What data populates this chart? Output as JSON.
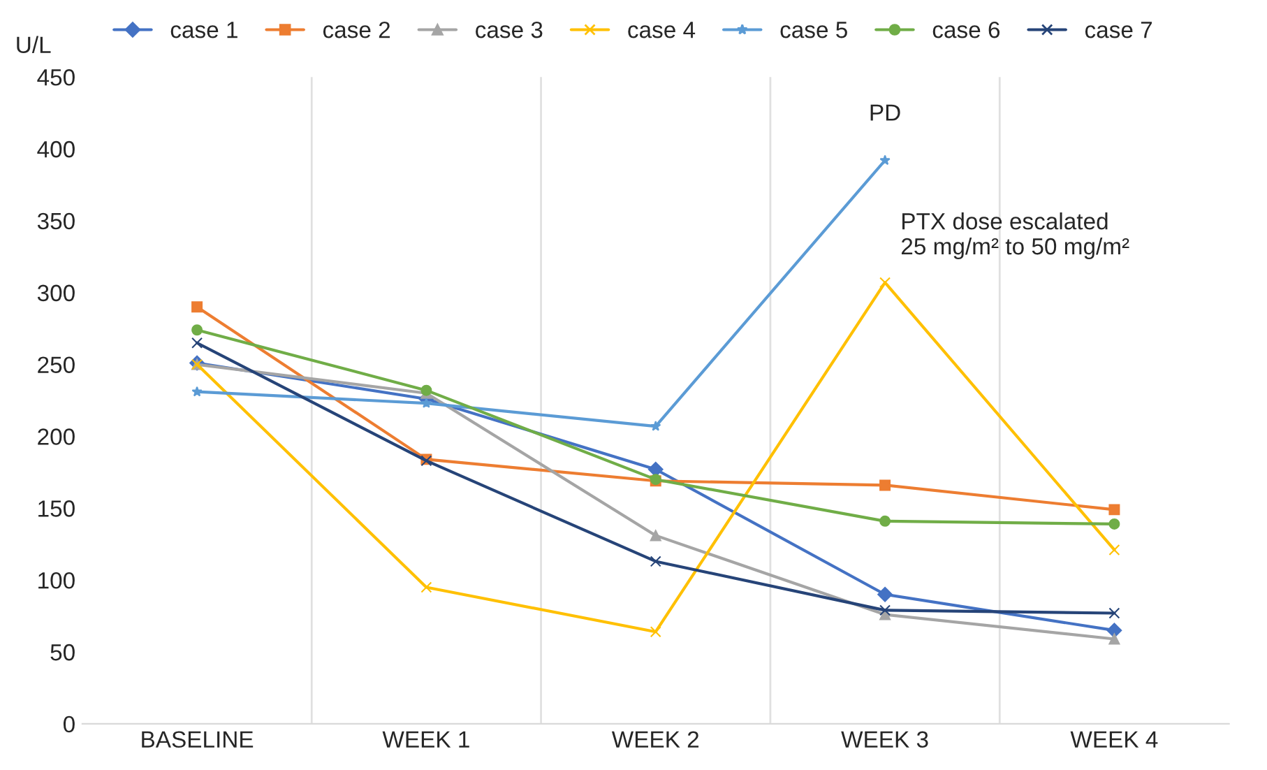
{
  "chart_data": {
    "type": "line",
    "ylabel": "U/L",
    "categories": [
      "BASELINE",
      "WEEK 1",
      "WEEK 2",
      "WEEK 3",
      "WEEK 4"
    ],
    "ylim": [
      0,
      450
    ],
    "yticks": [
      0,
      50,
      100,
      150,
      200,
      250,
      300,
      350,
      400,
      450
    ],
    "grid": "x",
    "legend": "top",
    "series": [
      {
        "name": "case 1",
        "color": "#4472c4",
        "marker": "diamond",
        "values": [
          251,
          226,
          177,
          90,
          65
        ]
      },
      {
        "name": "case 2",
        "color": "#ed7d31",
        "marker": "square",
        "values": [
          290,
          184,
          169,
          166,
          149
        ]
      },
      {
        "name": "case 3",
        "color": "#a5a5a5",
        "marker": "triangle",
        "values": [
          250,
          230,
          131,
          76,
          59
        ]
      },
      {
        "name": "case 4",
        "color": "#ffc000",
        "marker": "cross",
        "values": [
          250,
          95,
          64,
          307,
          121
        ]
      },
      {
        "name": "case 5",
        "color": "#5b9bd5",
        "marker": "star",
        "values": [
          231,
          223,
          207,
          392,
          null
        ]
      },
      {
        "name": "case 6",
        "color": "#70ad47",
        "marker": "circle",
        "values": [
          274,
          232,
          170,
          141,
          139
        ]
      },
      {
        "name": "case 7",
        "color": "#264478",
        "marker": "cross",
        "values": [
          265,
          183,
          113,
          79,
          77
        ]
      }
    ],
    "annotations": [
      {
        "text": "PD",
        "x": "WEEK 3",
        "y": 392
      },
      {
        "text": "PTX dose escalated\n25 mg/m² to 50 mg/m²",
        "x": "WEEK 3",
        "y": 307
      }
    ]
  }
}
